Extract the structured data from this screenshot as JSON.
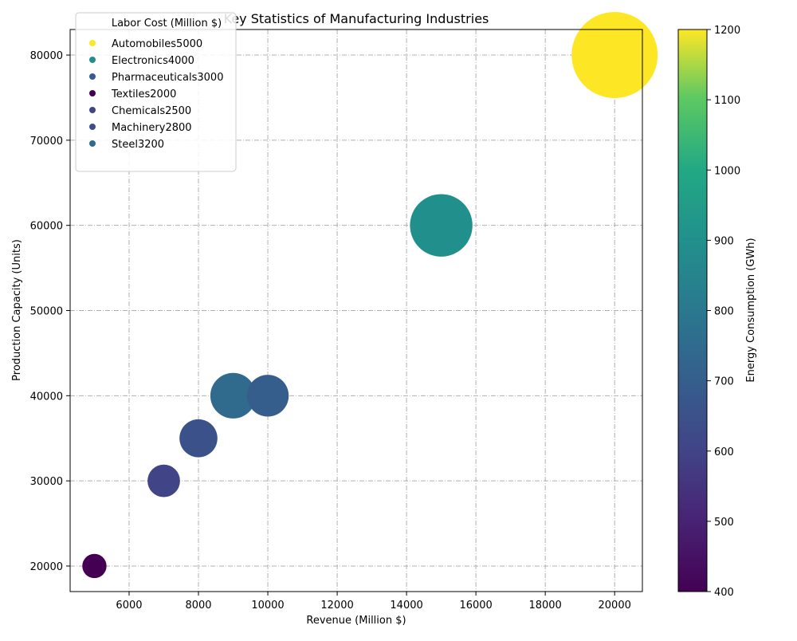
{
  "chart_data": {
    "type": "scatter",
    "title": "Key Statistics of Manufacturing Industries",
    "xlabel": "Revenue (Million $)",
    "ylabel": "Production Capacity (Units)",
    "xlim": [
      4300,
      20800
    ],
    "ylim": [
      17000,
      83000
    ],
    "xticks": [
      6000,
      8000,
      10000,
      12000,
      14000,
      16000,
      18000,
      20000
    ],
    "yticks": [
      20000,
      30000,
      40000,
      50000,
      60000,
      70000,
      80000
    ],
    "grid": true,
    "legend": {
      "title": "Labor Cost (Million $)",
      "placement": "top-left",
      "entries": [
        "Automobiles5000",
        "Electronics4000",
        "Pharmaceuticals3000",
        "Textiles2000",
        "Chemicals2500",
        "Machinery2800",
        "Steel3200"
      ]
    },
    "colorbar": {
      "label": "Energy Consumption (GWh)",
      "colormap": "viridis",
      "range": [
        400,
        1200
      ],
      "ticks": [
        400,
        500,
        600,
        700,
        800,
        900,
        1000,
        1100,
        1200
      ]
    },
    "points": [
      {
        "industry": "Automobiles",
        "labor_cost": 5000,
        "revenue": 20000,
        "production_capacity": 80000,
        "energy_consumption": 1200
      },
      {
        "industry": "Electronics",
        "labor_cost": 4000,
        "revenue": 15000,
        "production_capacity": 60000,
        "energy_consumption": 900
      },
      {
        "industry": "Pharmaceuticals",
        "labor_cost": 3000,
        "revenue": 10000,
        "production_capacity": 40000,
        "energy_consumption": 700
      },
      {
        "industry": "Textiles",
        "labor_cost": 2000,
        "revenue": 5000,
        "production_capacity": 20000,
        "energy_consumption": 400
      },
      {
        "industry": "Chemicals",
        "labor_cost": 2500,
        "revenue": 7000,
        "production_capacity": 30000,
        "energy_consumption": 600
      },
      {
        "industry": "Machinery",
        "labor_cost": 2800,
        "revenue": 8000,
        "production_capacity": 35000,
        "energy_consumption": 650
      },
      {
        "industry": "Steel",
        "labor_cost": 3200,
        "revenue": 9000,
        "production_capacity": 40000,
        "energy_consumption": 750
      }
    ]
  }
}
